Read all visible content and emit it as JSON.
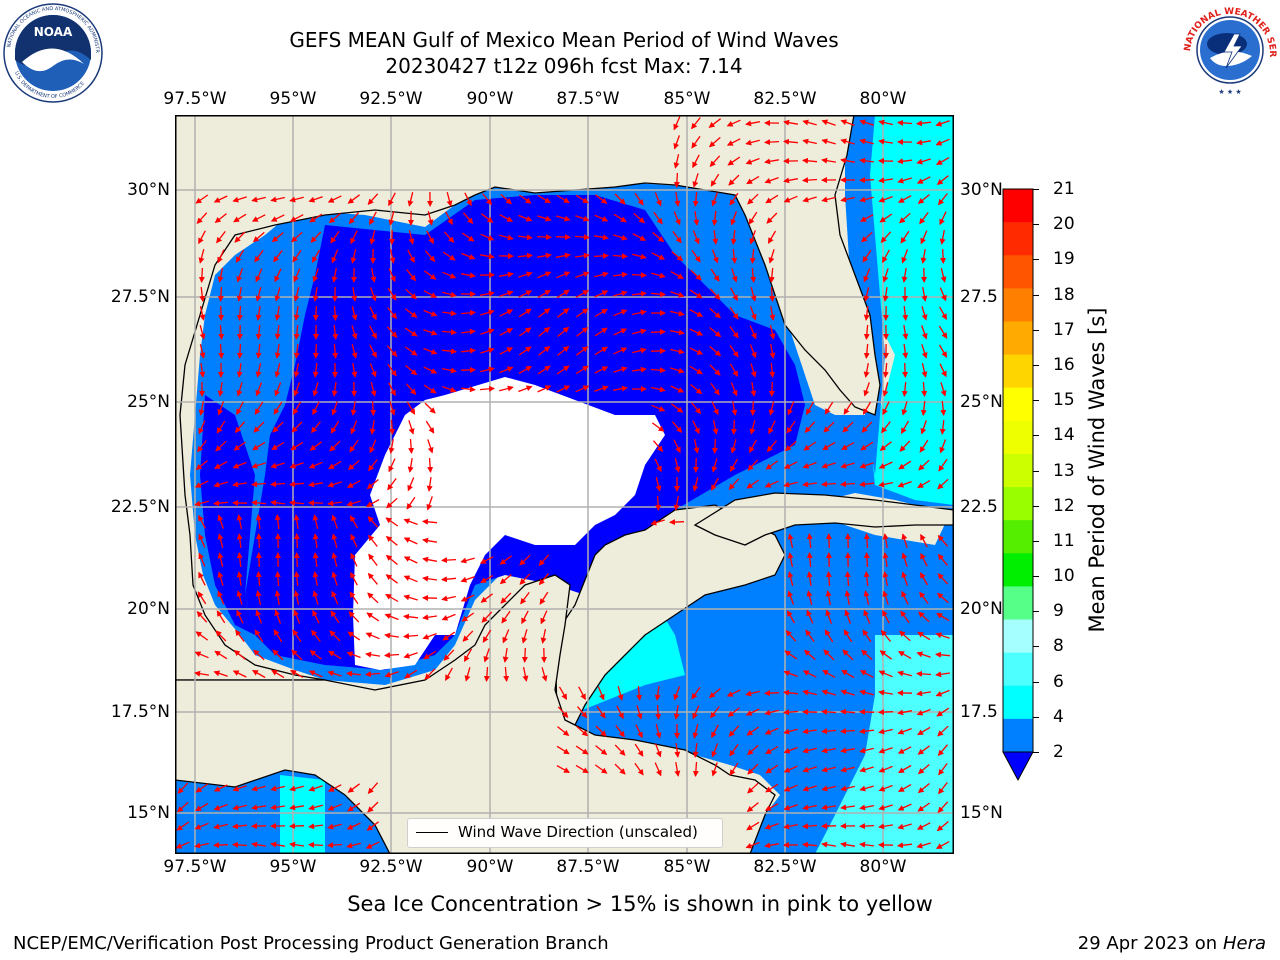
{
  "header": {
    "title_line1": "GEFS MEAN Gulf of Mexico Mean Period of Wind Waves",
    "title_line2": "20230427 t12z 096h fcst   Max: 7.14"
  },
  "logos": {
    "left": {
      "name": "noaa-logo",
      "text": "NOAA",
      "ring_text": "NATIONAL OCEANIC AND ATMOSPHERIC ADMINISTRATION · U.S. DEPARTMENT OF COMMERCE"
    },
    "right": {
      "name": "nws-logo",
      "ring_text": "NATIONAL WEATHER SERVICE"
    }
  },
  "map": {
    "lon_labels": [
      "97.5°W",
      "95°W",
      "92.5°W",
      "90°W",
      "87.5°W",
      "85°W",
      "82.5°W",
      "80°W"
    ],
    "lat_labels_left": [
      "30°N",
      "27.5°N",
      "25°N",
      "22.5°N",
      "20°N",
      "17.5°N",
      "15°N"
    ],
    "lat_labels_right": [
      "30°N",
      "27.5",
      "25°N",
      "22.5",
      "20°N",
      "17.5",
      "15°N"
    ],
    "legend": "Wind Wave Direction (unscaled)",
    "colors": {
      "land": "#eeecdb",
      "deep_blue": "#0000ff",
      "mid_blue": "#0080ff",
      "cyan": "#00ffff",
      "light_cyan": "#4dffff",
      "arrow": "#ff0000"
    }
  },
  "colorbar": {
    "label": "Mean Period of Wind Waves [s]",
    "ticks": [
      "21",
      "20",
      "19",
      "18",
      "17",
      "16",
      "15",
      "14",
      "13",
      "12",
      "11",
      "10",
      "9",
      "8",
      "6",
      "4",
      "2"
    ],
    "colors": [
      "#ff0000",
      "#ff2a00",
      "#ff5500",
      "#ff8000",
      "#ffaa00",
      "#ffd500",
      "#ffff00",
      "#eeff00",
      "#ccff00",
      "#99ff00",
      "#55ee00",
      "#00ee00",
      "#55ff88",
      "#a6ffff",
      "#4dffff",
      "#00ffff",
      "#0080ff"
    ],
    "extend_color": "#0000ff"
  },
  "note": "Sea Ice Concentration > 15% is shown in pink to yellow",
  "footer": {
    "left": "NCEP/EMC/Verification Post Processing Product Generation Branch",
    "right_prefix": "29 Apr 2023 on ",
    "right_host": "Hera"
  }
}
